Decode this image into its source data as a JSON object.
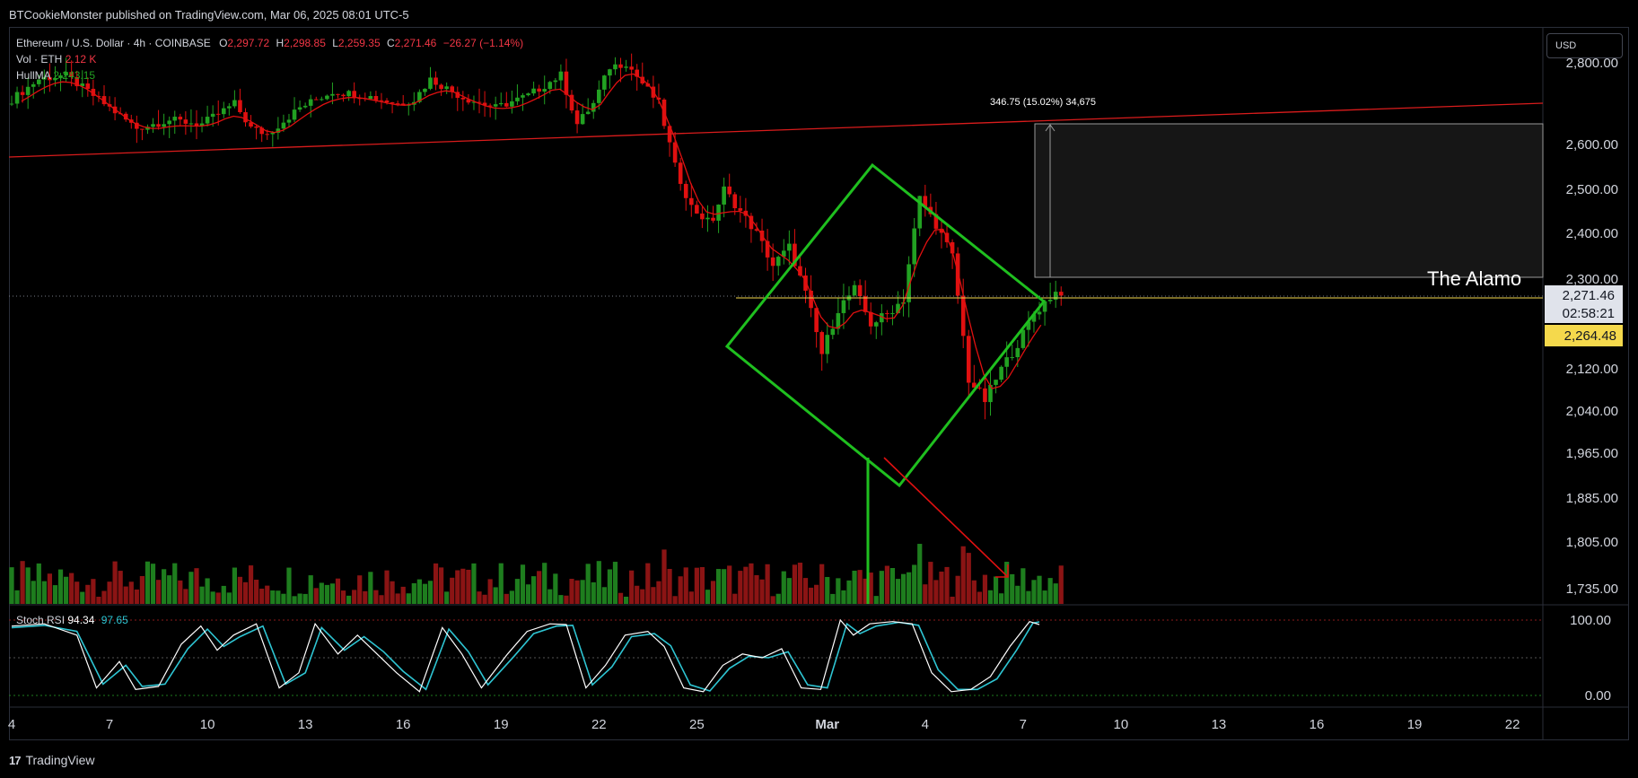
{
  "header": {
    "published": "BTCookieMonster published on TradingView.com, Mar 06, 2025 08:01 UTC-5",
    "symbol": "Ethereum / U.S. Dollar · 4h · COINBASE",
    "o_label": "O",
    "o_value": "2,297.72",
    "h_label": "H",
    "h_value": "2,298.85",
    "l_label": "L",
    "l_value": "2,259.35",
    "c_label": "C",
    "c_value": "2,271.46",
    "change": "−26.27 (−1.14%)",
    "vol_label": "Vol · ETH",
    "vol_value": "2.12 K",
    "hull_label": "HullMA",
    "hull_value": "2,243.15",
    "stoch_label": "Stoch RSI",
    "stoch_k": "94.34",
    "stoch_d": "97.65"
  },
  "currency_button": "USD",
  "footer_logo": "TradingView",
  "price_labels": {
    "last": "2,271.46",
    "countdown": "02:58:21",
    "level": "2,264.48",
    "alamo_annotation": "The Alamo",
    "measure": "346.75 (15.02%) 34,675"
  },
  "colors": {
    "up": "#26a69a",
    "up_green": "#22a122",
    "down": "#e01010",
    "diamond": "#1fbf1f",
    "trendline": "#d91c1c",
    "stoch_k": "#ffffff",
    "stoch_d": "#2ec5d3",
    "level": "#f5d94c",
    "last_price_bg": "#e0e3eb"
  },
  "chart_data": {
    "type": "candlestick",
    "symbol": "ETHUSD",
    "interval": "4h",
    "y_axis_ticks": [
      "2,800.00",
      "2,600.00",
      "2,500.00",
      "2,400.00",
      "2,300.00",
      "2,120.00",
      "2,040.00",
      "1,965.00",
      "1,885.00",
      "1,805.00",
      "1,735.00"
    ],
    "x_axis_ticks": [
      "4",
      "7",
      "10",
      "13",
      "16",
      "19",
      "22",
      "25",
      "Mar",
      "4",
      "7",
      "10",
      "13",
      "16",
      "19",
      "22"
    ],
    "stoch_axis_ticks": [
      "100.00",
      "0.00"
    ],
    "ylim": [
      1720,
      2850
    ],
    "close_path": [
      [
        4,
        2700
      ],
      [
        5,
        2760
      ],
      [
        5.8,
        2770
      ],
      [
        6.5,
        2730
      ],
      [
        7,
        2700
      ],
      [
        8,
        2640
      ],
      [
        9,
        2660
      ],
      [
        10,
        2650
      ],
      [
        11,
        2700
      ],
      [
        11.5,
        2640
      ],
      [
        12,
        2625
      ],
      [
        13,
        2690
      ],
      [
        14,
        2730
      ],
      [
        15,
        2720
      ],
      [
        16,
        2700
      ],
      [
        16.5,
        2710
      ],
      [
        17,
        2760
      ],
      [
        18,
        2715
      ],
      [
        19,
        2690
      ],
      [
        20,
        2720
      ],
      [
        21,
        2770
      ],
      [
        21.5,
        2650
      ],
      [
        22,
        2700
      ],
      [
        22.5,
        2790
      ],
      [
        23,
        2800
      ],
      [
        23.6,
        2740
      ],
      [
        24,
        2700
      ],
      [
        24.5,
        2550
      ],
      [
        25,
        2460
      ],
      [
        25.6,
        2420
      ],
      [
        26,
        2500
      ],
      [
        26.5,
        2450
      ],
      [
        27,
        2400
      ],
      [
        27.5,
        2330
      ],
      [
        28,
        2370
      ],
      [
        28.6,
        2250
      ],
      [
        29,
        2150
      ],
      [
        29.5,
        2240
      ],
      [
        30,
        2280
      ],
      [
        30.5,
        2210
      ],
      [
        31,
        2230
      ],
      [
        31.5,
        2260
      ],
      [
        32,
        2480
      ],
      [
        32.5,
        2420
      ],
      [
        33,
        2350
      ],
      [
        33.5,
        2100
      ],
      [
        34,
        2060
      ],
      [
        34.5,
        2120
      ],
      [
        35,
        2170
      ],
      [
        35.5,
        2230
      ],
      [
        36,
        2265
      ],
      [
        36.2,
        2275
      ]
    ],
    "stoch_k_path": [
      [
        4,
        92
      ],
      [
        5,
        95
      ],
      [
        6,
        80
      ],
      [
        6.6,
        10
      ],
      [
        7.3,
        45
      ],
      [
        7.8,
        8
      ],
      [
        8.5,
        12
      ],
      [
        9.2,
        68
      ],
      [
        9.8,
        92
      ],
      [
        10.3,
        60
      ],
      [
        10.8,
        80
      ],
      [
        11.5,
        95
      ],
      [
        12.2,
        10
      ],
      [
        12.8,
        30
      ],
      [
        13.3,
        95
      ],
      [
        14,
        55
      ],
      [
        14.6,
        80
      ],
      [
        15.2,
        55
      ],
      [
        15.8,
        30
      ],
      [
        16.5,
        5
      ],
      [
        17.2,
        90
      ],
      [
        17.8,
        55
      ],
      [
        18.4,
        10
      ],
      [
        19.2,
        55
      ],
      [
        19.8,
        85
      ],
      [
        20.5,
        95
      ],
      [
        21,
        94
      ],
      [
        21.6,
        10
      ],
      [
        22.2,
        40
      ],
      [
        22.8,
        80
      ],
      [
        23.5,
        85
      ],
      [
        24,
        65
      ],
      [
        24.6,
        10
      ],
      [
        25.2,
        5
      ],
      [
        25.8,
        40
      ],
      [
        26.4,
        55
      ],
      [
        27,
        50
      ],
      [
        27.6,
        62
      ],
      [
        28.2,
        10
      ],
      [
        28.8,
        8
      ],
      [
        29.4,
        100
      ],
      [
        29.8,
        80
      ],
      [
        30.3,
        95
      ],
      [
        31,
        98
      ],
      [
        31.6,
        95
      ],
      [
        32.2,
        30
      ],
      [
        32.8,
        5
      ],
      [
        33.4,
        8
      ],
      [
        34,
        25
      ],
      [
        34.6,
        65
      ],
      [
        35.2,
        98
      ],
      [
        35.5,
        94
      ]
    ],
    "stoch_d_path": [
      [
        4,
        90
      ],
      [
        5,
        93
      ],
      [
        6,
        85
      ],
      [
        6.8,
        15
      ],
      [
        7.5,
        40
      ],
      [
        8,
        12
      ],
      [
        8.7,
        15
      ],
      [
        9.4,
        62
      ],
      [
        10,
        88
      ],
      [
        10.5,
        65
      ],
      [
        11,
        78
      ],
      [
        11.7,
        92
      ],
      [
        12.4,
        15
      ],
      [
        13,
        30
      ],
      [
        13.5,
        90
      ],
      [
        14.2,
        60
      ],
      [
        14.8,
        78
      ],
      [
        15.4,
        58
      ],
      [
        16,
        32
      ],
      [
        16.7,
        8
      ],
      [
        17.4,
        88
      ],
      [
        18,
        58
      ],
      [
        18.6,
        14
      ],
      [
        19.4,
        52
      ],
      [
        20,
        82
      ],
      [
        20.7,
        92
      ],
      [
        21.2,
        93
      ],
      [
        21.8,
        14
      ],
      [
        22.4,
        38
      ],
      [
        23,
        78
      ],
      [
        23.7,
        82
      ],
      [
        24.2,
        66
      ],
      [
        24.8,
        14
      ],
      [
        25.4,
        6
      ],
      [
        26,
        36
      ],
      [
        26.6,
        52
      ],
      [
        27.2,
        50
      ],
      [
        27.8,
        58
      ],
      [
        28.4,
        14
      ],
      [
        29,
        10
      ],
      [
        29.6,
        95
      ],
      [
        30,
        82
      ],
      [
        30.5,
        92
      ],
      [
        31.2,
        97
      ],
      [
        31.8,
        93
      ],
      [
        32.4,
        34
      ],
      [
        33,
        8
      ],
      [
        33.6,
        8
      ],
      [
        34.2,
        22
      ],
      [
        34.8,
        60
      ],
      [
        35.3,
        96
      ],
      [
        35.5,
        97.65
      ]
    ]
  }
}
